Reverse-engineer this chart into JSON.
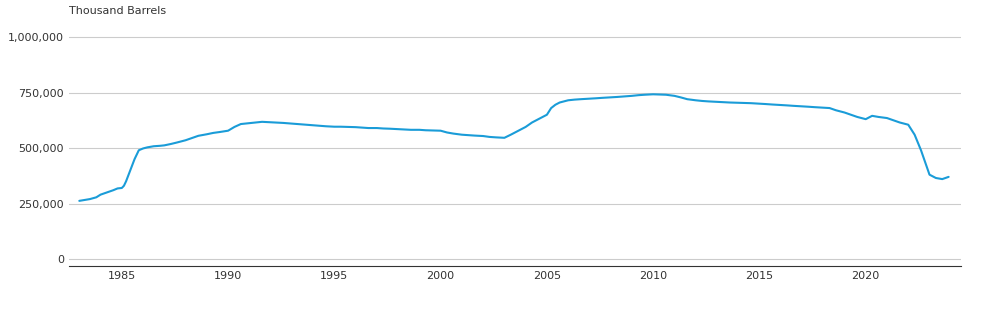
{
  "title_y_label": "Thousand Barrels",
  "line_color": "#1a9cd8",
  "line_width": 1.5,
  "background_color": "#ffffff",
  "grid_color": "#cccccc",
  "yticks": [
    0,
    250000,
    500000,
    750000,
    1000000
  ],
  "ytick_labels": [
    "0",
    "250,000",
    "500,000",
    "750,000",
    "1,000,000"
  ],
  "xticks": [
    1985,
    1990,
    1995,
    2000,
    2005,
    2010,
    2015,
    2020
  ],
  "xlim": [
    1982.5,
    2024.5
  ],
  "ylim": [
    -30000,
    1050000
  ],
  "data_x": [
    1983.0,
    1983.2,
    1983.5,
    1983.8,
    1984.0,
    1984.3,
    1984.6,
    1984.8,
    1985.0,
    1985.1,
    1985.2,
    1985.4,
    1985.6,
    1985.8,
    1986.0,
    1986.2,
    1986.5,
    1986.8,
    1987.0,
    1987.3,
    1987.6,
    1988.0,
    1988.3,
    1988.6,
    1989.0,
    1989.3,
    1989.6,
    1990.0,
    1990.3,
    1990.6,
    1991.0,
    1991.3,
    1991.6,
    1992.0,
    1992.3,
    1992.6,
    1993.0,
    1993.3,
    1993.6,
    1994.0,
    1994.3,
    1994.6,
    1995.0,
    1995.3,
    1995.6,
    1996.0,
    1996.3,
    1996.6,
    1997.0,
    1997.3,
    1997.6,
    1998.0,
    1998.3,
    1998.6,
    1999.0,
    1999.3,
    1999.6,
    2000.0,
    2000.3,
    2000.6,
    2001.0,
    2001.3,
    2001.6,
    2002.0,
    2002.3,
    2002.6,
    2003.0,
    2003.3,
    2003.6,
    2004.0,
    2004.3,
    2004.6,
    2005.0,
    2005.2,
    2005.4,
    2005.6,
    2005.8,
    2006.0,
    2006.3,
    2006.6,
    2007.0,
    2007.3,
    2007.6,
    2008.0,
    2008.3,
    2008.6,
    2009.0,
    2009.3,
    2009.6,
    2010.0,
    2010.3,
    2010.6,
    2011.0,
    2011.3,
    2011.6,
    2012.0,
    2012.3,
    2012.6,
    2013.0,
    2013.3,
    2013.6,
    2014.0,
    2014.3,
    2014.6,
    2015.0,
    2015.3,
    2015.6,
    2016.0,
    2016.3,
    2016.6,
    2017.0,
    2017.3,
    2017.6,
    2018.0,
    2018.3,
    2018.6,
    2019.0,
    2019.3,
    2019.6,
    2020.0,
    2020.3,
    2020.6,
    2021.0,
    2021.3,
    2021.6,
    2022.0,
    2022.3,
    2022.6,
    2023.0,
    2023.3,
    2023.6,
    2023.9
  ],
  "data_y": [
    262000,
    265000,
    270000,
    278000,
    290000,
    300000,
    310000,
    318000,
    320000,
    330000,
    350000,
    400000,
    450000,
    490000,
    498000,
    503000,
    508000,
    510000,
    512000,
    518000,
    525000,
    535000,
    545000,
    555000,
    562000,
    568000,
    572000,
    578000,
    595000,
    608000,
    612000,
    615000,
    618000,
    616000,
    615000,
    613000,
    610000,
    608000,
    605000,
    603000,
    600000,
    598000,
    596000,
    596000,
    595000,
    594000,
    592000,
    590000,
    590000,
    588000,
    587000,
    585000,
    583000,
    582000,
    582000,
    580000,
    579000,
    578000,
    570000,
    565000,
    560000,
    558000,
    556000,
    554000,
    550000,
    548000,
    546000,
    560000,
    575000,
    595000,
    615000,
    630000,
    650000,
    680000,
    695000,
    705000,
    710000,
    715000,
    718000,
    720000,
    722000,
    724000,
    726000,
    728000,
    730000,
    732000,
    735000,
    738000,
    740000,
    742000,
    741000,
    740000,
    735000,
    728000,
    720000,
    715000,
    712000,
    710000,
    708000,
    706000,
    705000,
    704000,
    703000,
    702000,
    700000,
    698000,
    696000,
    694000,
    692000,
    690000,
    688000,
    686000,
    684000,
    682000,
    680000,
    670000,
    660000,
    650000,
    640000,
    630000,
    645000,
    640000,
    635000,
    625000,
    615000,
    605000,
    560000,
    490000,
    380000,
    365000,
    360000,
    370000
  ]
}
